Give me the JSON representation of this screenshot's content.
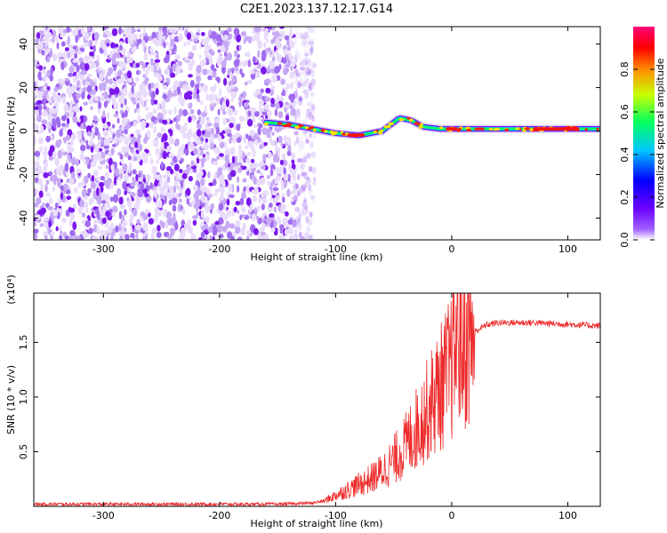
{
  "title": "C2E1.2023.137.12.17.G14",
  "colors": {
    "snr_line": "#ee2a2a",
    "frame": "#000000",
    "background": "#ffffff"
  },
  "chart_data": [
    {
      "type": "heatmap",
      "xlabel": "Height of straight line (km)",
      "ylabel": "Frequency (Hz)",
      "xlim": [
        -360,
        128
      ],
      "ylim": [
        -50,
        48
      ],
      "x_ticks": [
        "-300",
        "-200",
        "-100",
        "0",
        "100"
      ],
      "y_ticks": [
        "-40",
        "-20",
        "0",
        "20",
        "40"
      ],
      "colorbar": {
        "label": "Normalized spectral amplitude",
        "range": [
          0.0,
          1.0
        ],
        "ticks": [
          "0.0",
          "0.2",
          "0.4",
          "0.6",
          "0.8"
        ],
        "colormap": "hsv-rainbow (white/violet to red to magenta)"
      },
      "signal_track": {
        "description": "Narrow high-amplitude tone near 0 Hz from about -160 km to the top; diffuse low-amplitude noise over full band below about -120 km",
        "x": [
          -160,
          -140,
          -120,
          -100,
          -80,
          -60,
          -45,
          -35,
          -25,
          -10,
          0,
          20,
          50,
          80,
          100,
          128
        ],
        "freq": [
          4,
          3,
          1,
          -1,
          -2,
          0,
          6,
          5,
          2,
          1,
          1,
          1,
          1,
          1,
          1,
          1
        ]
      }
    },
    {
      "type": "line",
      "xlabel": "Height of straight line (km)",
      "ylabel": "SNR (10 * v/v)",
      "y_multiplier": "(x10⁴)",
      "xlim": [
        -360,
        128
      ],
      "ylim": [
        0,
        1.95
      ],
      "x_ticks": [
        "-300",
        "-200",
        "-100",
        "0",
        "100"
      ],
      "y_ticks": [
        "0.5",
        "1.0",
        "1.5"
      ],
      "series": [
        {
          "x": [
            -360,
            -300,
            -250,
            -200,
            -150,
            -120,
            -110,
            -100,
            -90,
            -80,
            -70,
            -60,
            -50,
            -40,
            -30,
            -20,
            -10,
            0,
            5,
            10,
            20,
            30,
            40,
            50,
            70,
            90,
            110,
            128
          ],
          "y": [
            0.02,
            0.02,
            0.02,
            0.02,
            0.02,
            0.03,
            0.05,
            0.1,
            0.15,
            0.2,
            0.25,
            0.32,
            0.42,
            0.55,
            0.72,
            0.9,
            1.08,
            1.28,
            1.6,
            1.45,
            1.6,
            1.66,
            1.68,
            1.68,
            1.68,
            1.67,
            1.66,
            1.65
          ]
        }
      ]
    }
  ]
}
